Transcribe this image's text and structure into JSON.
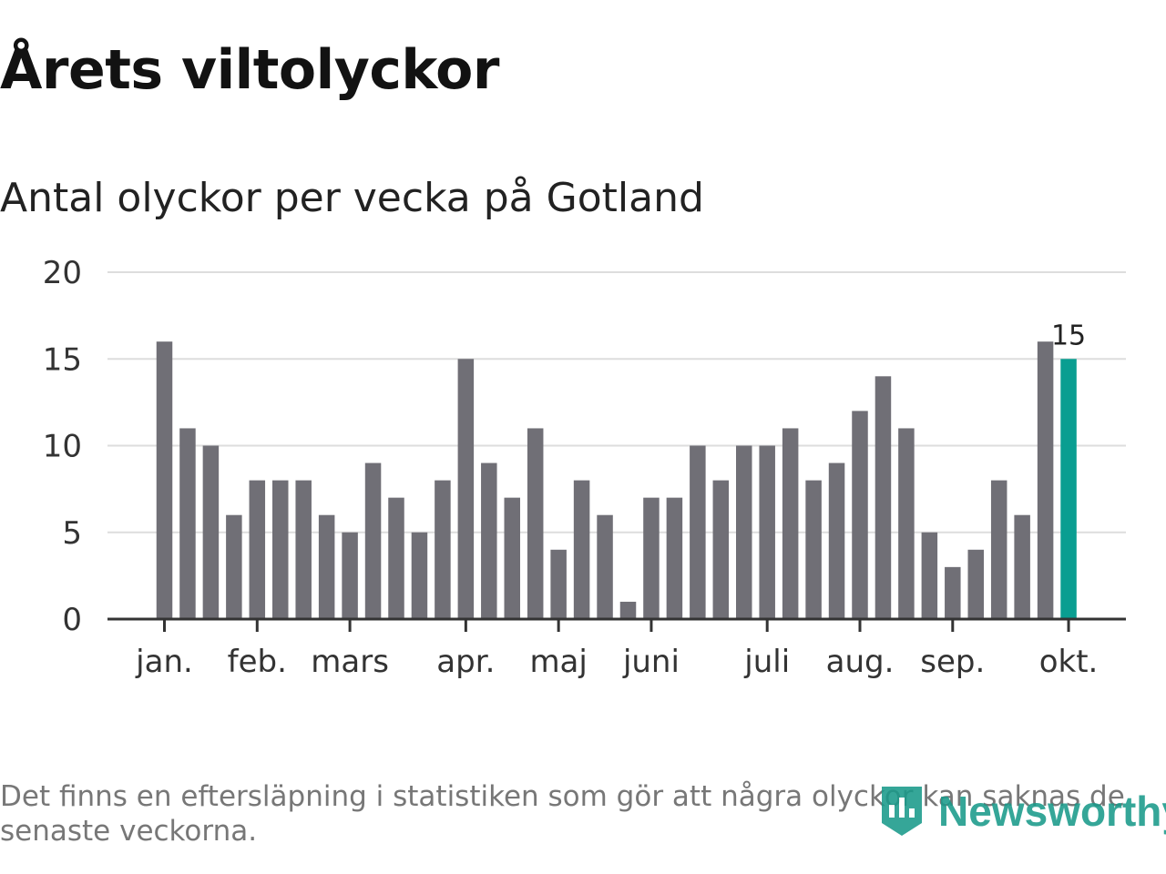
{
  "title": "Årets viltolyckor",
  "subtitle": "Antal olyckor per vecka på Gotland",
  "footnote": "Det finns en eftersläpning i statistiken som gör att några olyckor kan saknas de senaste veckorna.",
  "logo": {
    "text": "Newsworthy",
    "icon": "newsworthy-logo-icon"
  },
  "colors": {
    "bar": "#706f76",
    "highlight": "#0a9e91",
    "grid": "#dddddd",
    "axis": "#333333",
    "text": "#333333",
    "logo": "#1a9a8a"
  },
  "chart_data": {
    "type": "bar",
    "title": "Antal olyckor per vecka på Gotland",
    "xlabel": "",
    "ylabel": "",
    "ylim": [
      0,
      20
    ],
    "yticks": [
      0,
      5,
      10,
      15,
      20
    ],
    "grid": true,
    "values": [
      16,
      11,
      10,
      6,
      8,
      8,
      8,
      6,
      5,
      9,
      7,
      5,
      8,
      15,
      9,
      7,
      11,
      4,
      8,
      6,
      1,
      7,
      7,
      10,
      8,
      10,
      10,
      11,
      8,
      9,
      12,
      14,
      11,
      5,
      3,
      4,
      8,
      6,
      16,
      15
    ],
    "highlight_index": 39,
    "highlight_label": "15",
    "month_ticks": [
      {
        "label": "jan.",
        "bar_index": 0
      },
      {
        "label": "feb.",
        "bar_index": 4
      },
      {
        "label": "mars",
        "bar_index": 8
      },
      {
        "label": "apr.",
        "bar_index": 13
      },
      {
        "label": "maj",
        "bar_index": 17
      },
      {
        "label": "juni",
        "bar_index": 21
      },
      {
        "label": "juli",
        "bar_index": 26
      },
      {
        "label": "aug.",
        "bar_index": 30
      },
      {
        "label": "sep.",
        "bar_index": 34
      },
      {
        "label": "okt.",
        "bar_index": 39
      }
    ]
  }
}
